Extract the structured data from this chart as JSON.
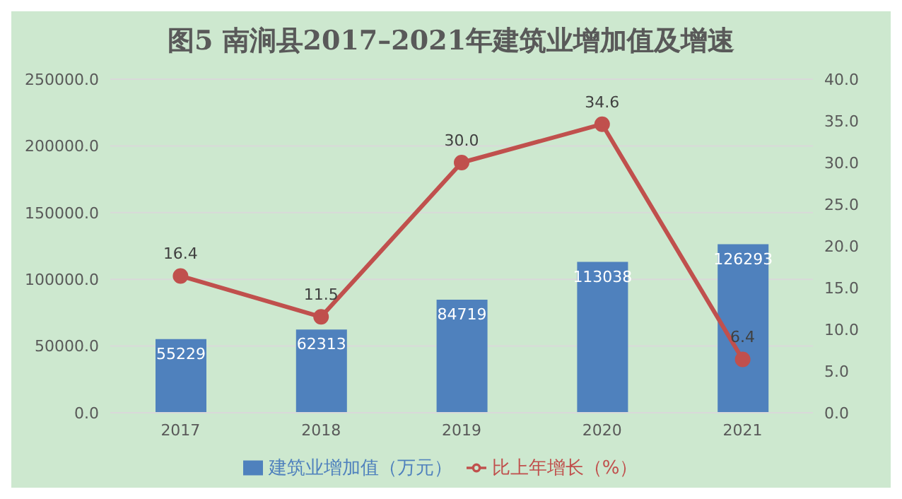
{
  "chart_data": {
    "type": "bar",
    "title": "图5  南涧县2017–2021年建筑业增加值及增速",
    "categories": [
      "2017",
      "2018",
      "2019",
      "2020",
      "2021"
    ],
    "series": [
      {
        "name": "建筑业增加值（万元）",
        "color": "#4f81bd",
        "values": [
          55229,
          62313,
          84719,
          113038,
          126293
        ]
      },
      {
        "name": "比上年增长（%）",
        "type": "line",
        "axis": "y2",
        "color": "#c0504d",
        "values": [
          16.4,
          11.5,
          30.0,
          34.6,
          6.4
        ],
        "value_labels": [
          "16.4",
          "11.5",
          "30.0",
          "34.6",
          "6.4"
        ]
      }
    ],
    "ylim": [
      0,
      250000
    ],
    "yticks": [
      {
        "value": 0,
        "label": "0.0"
      },
      {
        "value": 50000,
        "label": "50000.0"
      },
      {
        "value": 100000,
        "label": "100000.0"
      },
      {
        "value": 150000,
        "label": "150000.0"
      },
      {
        "value": 200000,
        "label": "200000.0"
      },
      {
        "value": 250000,
        "label": "250000.0"
      }
    ],
    "y2lim": [
      0,
      40
    ],
    "y2ticks": [
      {
        "value": 0,
        "label": "0.0"
      },
      {
        "value": 5,
        "label": "5.0"
      },
      {
        "value": 10,
        "label": "10.0"
      },
      {
        "value": 15,
        "label": "15.0"
      },
      {
        "value": 20,
        "label": "20.0"
      },
      {
        "value": 25,
        "label": "25.0"
      },
      {
        "value": 30,
        "label": "30.0"
      },
      {
        "value": 35,
        "label": "35.0"
      },
      {
        "value": 40,
        "label": "40.0"
      }
    ],
    "grid": "y",
    "legend": "bottom",
    "marker": "circle",
    "line_style": "solid",
    "data_labels": true
  }
}
